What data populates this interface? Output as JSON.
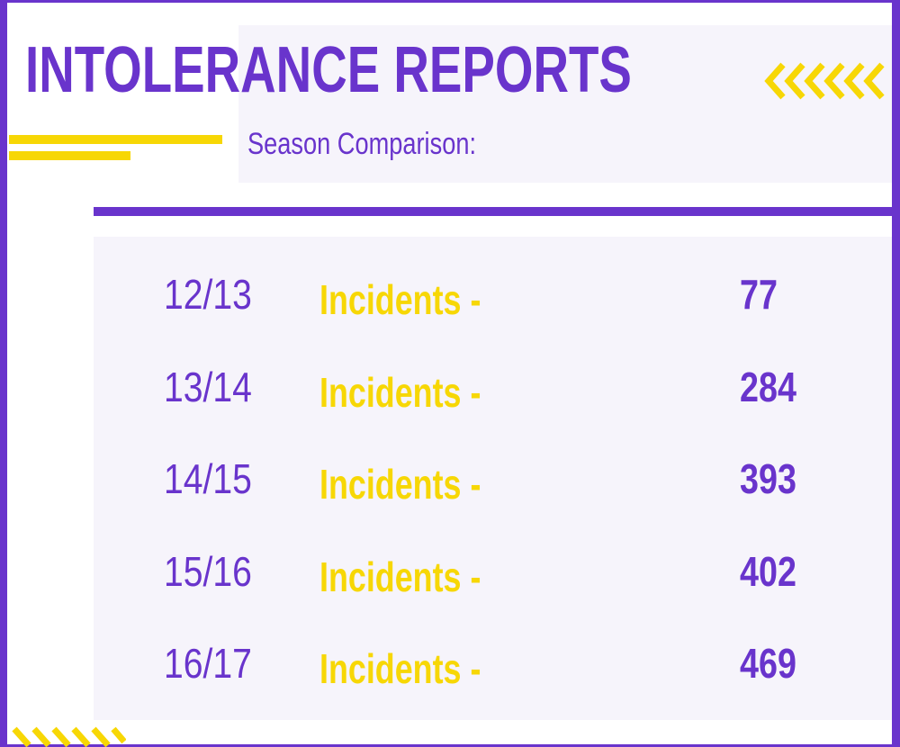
{
  "header": {
    "title": "INTOLERANCE REPORTS",
    "subtitle": "Season Comparison:"
  },
  "table": {
    "rows": [
      {
        "season": "12/13",
        "label": "Incidents -",
        "value": "77"
      },
      {
        "season": "13/14",
        "label": "Incidents -",
        "value": "284"
      },
      {
        "season": "14/15",
        "label": "Incidents -",
        "value": "393"
      },
      {
        "season": "15/16",
        "label": "Incidents -",
        "value": "402"
      },
      {
        "season": "16/17",
        "label": "Incidents -",
        "value": "469"
      }
    ]
  }
}
